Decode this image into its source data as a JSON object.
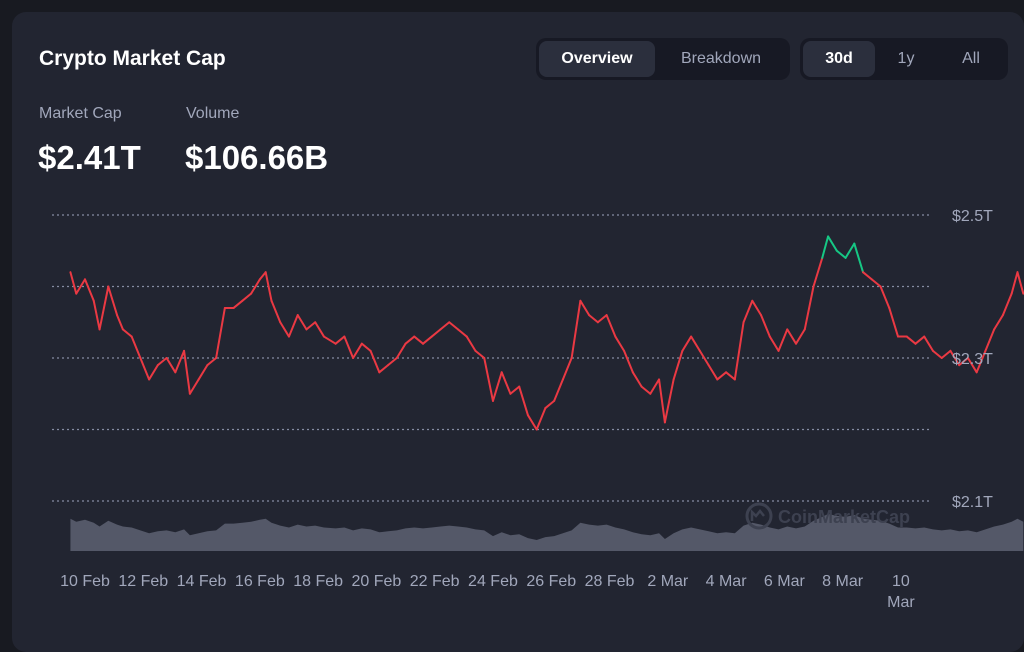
{
  "header": {
    "title": "Crypto Market Cap"
  },
  "view_tabs": [
    {
      "label": "Overview",
      "active": true
    },
    {
      "label": "Breakdown",
      "active": false
    }
  ],
  "range_tabs": [
    {
      "label": "30d",
      "active": true
    },
    {
      "label": "1y",
      "active": false
    },
    {
      "label": "All",
      "active": false
    }
  ],
  "stats": {
    "market_cap": {
      "label": "Market Cap",
      "value": "$2.41T"
    },
    "volume": {
      "label": "Volume",
      "value": "$106.66B"
    }
  },
  "watermark": "CoinMarketCap",
  "colors": {
    "line_down": "#ea3943",
    "line_up": "#16c784",
    "volume_fill": "#545868",
    "grid": "#858ca2"
  },
  "chart_data": {
    "type": "line",
    "y_ticks": [
      "$2.5T",
      "$2.3T",
      "$2.1T"
    ],
    "ylim": [
      2.1,
      2.5
    ],
    "grid": "dotted",
    "x_ticks": [
      {
        "label": "10 Feb",
        "day": 0
      },
      {
        "label": "12 Feb",
        "day": 2
      },
      {
        "label": "14 Feb",
        "day": 4
      },
      {
        "label": "16 Feb",
        "day": 6
      },
      {
        "label": "18 Feb",
        "day": 8
      },
      {
        "label": "20 Feb",
        "day": 10
      },
      {
        "label": "22 Feb",
        "day": 12
      },
      {
        "label": "24 Feb",
        "day": 14
      },
      {
        "label": "26 Feb",
        "day": 16
      },
      {
        "label": "28 Feb",
        "day": 18
      },
      {
        "label": "2 Mar",
        "day": 20
      },
      {
        "label": "4 Mar",
        "day": 22
      },
      {
        "label": "6 Mar",
        "day": 24
      },
      {
        "label": "8 Mar",
        "day": 26
      },
      {
        "label": "10 Mar",
        "day": 28
      }
    ],
    "series": [
      {
        "points": [
          [
            -0.5,
            2.42
          ],
          [
            -0.3,
            2.39
          ],
          [
            0.0,
            2.41
          ],
          [
            0.3,
            2.38
          ],
          [
            0.5,
            2.34
          ],
          [
            0.8,
            2.4
          ],
          [
            1.1,
            2.36
          ],
          [
            1.3,
            2.34
          ],
          [
            1.6,
            2.33
          ],
          [
            1.9,
            2.3
          ],
          [
            2.2,
            2.27
          ],
          [
            2.5,
            2.29
          ],
          [
            2.8,
            2.3
          ],
          [
            3.1,
            2.28
          ],
          [
            3.4,
            2.31
          ],
          [
            3.6,
            2.25
          ],
          [
            3.9,
            2.27
          ],
          [
            4.2,
            2.29
          ],
          [
            4.5,
            2.3
          ],
          [
            4.8,
            2.37
          ],
          [
            5.1,
            2.37
          ],
          [
            5.4,
            2.38
          ],
          [
            5.7,
            2.39
          ],
          [
            6.0,
            2.41
          ],
          [
            6.2,
            2.42
          ],
          [
            6.4,
            2.38
          ],
          [
            6.7,
            2.35
          ],
          [
            7.0,
            2.33
          ],
          [
            7.3,
            2.36
          ],
          [
            7.6,
            2.34
          ],
          [
            7.9,
            2.35
          ],
          [
            8.2,
            2.33
          ],
          [
            8.6,
            2.32
          ],
          [
            8.9,
            2.33
          ],
          [
            9.2,
            2.3
          ],
          [
            9.5,
            2.32
          ],
          [
            9.8,
            2.31
          ],
          [
            10.1,
            2.28
          ],
          [
            10.4,
            2.29
          ],
          [
            10.7,
            2.3
          ],
          [
            11.0,
            2.32
          ],
          [
            11.3,
            2.33
          ],
          [
            11.6,
            2.32
          ],
          [
            11.9,
            2.33
          ],
          [
            12.2,
            2.34
          ],
          [
            12.5,
            2.35
          ],
          [
            12.8,
            2.34
          ],
          [
            13.1,
            2.33
          ],
          [
            13.4,
            2.31
          ],
          [
            13.7,
            2.3
          ],
          [
            14.0,
            2.24
          ],
          [
            14.3,
            2.28
          ],
          [
            14.6,
            2.25
          ],
          [
            14.9,
            2.26
          ],
          [
            15.2,
            2.22
          ],
          [
            15.5,
            2.2
          ],
          [
            15.8,
            2.23
          ],
          [
            16.1,
            2.24
          ],
          [
            16.4,
            2.27
          ],
          [
            16.7,
            2.3
          ],
          [
            17.0,
            2.38
          ],
          [
            17.3,
            2.36
          ],
          [
            17.6,
            2.35
          ],
          [
            17.9,
            2.36
          ],
          [
            18.2,
            2.33
          ],
          [
            18.5,
            2.31
          ],
          [
            18.8,
            2.28
          ],
          [
            19.1,
            2.26
          ],
          [
            19.4,
            2.25
          ],
          [
            19.7,
            2.27
          ],
          [
            19.9,
            2.21
          ],
          [
            20.2,
            2.27
          ],
          [
            20.5,
            2.31
          ],
          [
            20.8,
            2.33
          ],
          [
            21.1,
            2.31
          ],
          [
            21.4,
            2.29
          ],
          [
            21.7,
            2.27
          ],
          [
            22.0,
            2.28
          ],
          [
            22.3,
            2.27
          ],
          [
            22.6,
            2.35
          ],
          [
            22.9,
            2.38
          ],
          [
            23.2,
            2.36
          ],
          [
            23.5,
            2.33
          ],
          [
            23.8,
            2.31
          ],
          [
            24.1,
            2.34
          ],
          [
            24.4,
            2.32
          ],
          [
            24.7,
            2.34
          ],
          [
            25.0,
            2.4
          ],
          [
            25.3,
            2.44
          ],
          [
            25.5,
            2.47
          ],
          [
            25.8,
            2.45
          ],
          [
            26.1,
            2.44
          ],
          [
            26.4,
            2.46
          ],
          [
            26.7,
            2.42
          ],
          [
            27.0,
            2.41
          ],
          [
            27.3,
            2.4
          ],
          [
            27.6,
            2.37
          ],
          [
            27.9,
            2.33
          ],
          [
            28.2,
            2.33
          ],
          [
            28.5,
            2.32
          ],
          [
            28.8,
            2.33
          ],
          [
            29.1,
            2.31
          ],
          [
            29.4,
            2.3
          ],
          [
            29.7,
            2.31
          ],
          [
            30.0,
            2.29
          ],
          [
            30.3,
            2.3
          ],
          [
            30.6,
            2.28
          ],
          [
            30.9,
            2.31
          ],
          [
            31.2,
            2.34
          ],
          [
            31.5,
            2.36
          ],
          [
            31.8,
            2.39
          ],
          [
            32.0,
            2.42
          ],
          [
            32.2,
            2.39
          ]
        ]
      }
    ]
  }
}
